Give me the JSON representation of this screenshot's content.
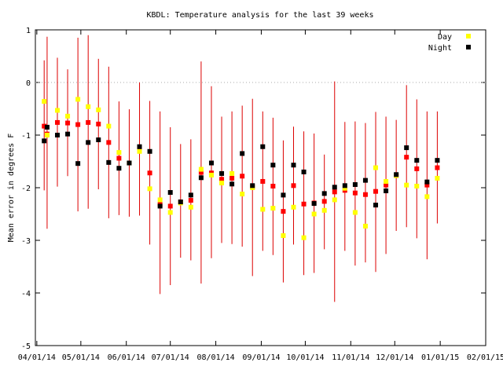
{
  "chart_data": {
    "type": "scatter",
    "title": "KBDL: Temperature analysis for the last 39 weeks",
    "xlabel": "",
    "ylabel": "Mean error in degrees F",
    "x_axis": {
      "type": "date",
      "ticks": [
        "04/01/14",
        "05/01/14",
        "06/01/14",
        "07/01/14",
        "08/01/14",
        "09/01/14",
        "10/01/14",
        "11/01/14",
        "12/01/14",
        "01/01/15",
        "02/01/15"
      ]
    },
    "y_axis": {
      "ylim": [
        -5,
        1
      ],
      "ticks": [
        "1",
        "0",
        "-1",
        "-2",
        "-3",
        "-4",
        "-5"
      ]
    },
    "reference_line": {
      "y": 0,
      "style": "dotted",
      "color": "#aaaaaa"
    },
    "legend": {
      "placement": "top-right",
      "entries": [
        {
          "name": "Day",
          "color": "#ffff00"
        },
        {
          "name": "Night",
          "color": "#000000"
        }
      ]
    },
    "colors": {
      "error_bar": "#dd0000",
      "mean": "#ff0000",
      "day": "#ffff00",
      "night": "#000000"
    },
    "weeks": [
      {
        "date": "2014-04-06",
        "mean": -0.83,
        "low": -2.05,
        "high": 0.42,
        "day": -0.36,
        "night": -1.11
      },
      {
        "date": "2014-04-08",
        "mean": -0.98,
        "low": -2.78,
        "high": 0.87,
        "day": -1.0,
        "night": -0.85
      },
      {
        "date": "2014-04-15",
        "mean": -0.76,
        "low": -1.98,
        "high": 0.47,
        "day": -0.53,
        "night": -1.0
      },
      {
        "date": "2014-04-22",
        "mean": -0.77,
        "low": -1.78,
        "high": 0.25,
        "day": -0.64,
        "night": -0.98
      },
      {
        "date": "2014-04-29",
        "mean": -0.8,
        "low": -2.45,
        "high": 0.85,
        "day": -0.32,
        "night": -1.54
      },
      {
        "date": "2014-05-06",
        "mean": -0.76,
        "low": -2.4,
        "high": 0.9,
        "day": -0.46,
        "night": -1.14
      },
      {
        "date": "2014-05-13",
        "mean": -0.79,
        "low": -2.03,
        "high": 0.45,
        "day": -0.52,
        "night": -1.09
      },
      {
        "date": "2014-05-20",
        "mean": -1.14,
        "low": -2.58,
        "high": 0.3,
        "day": -0.83,
        "night": -1.52
      },
      {
        "date": "2014-05-27",
        "mean": -1.44,
        "low": -2.52,
        "high": -0.36,
        "day": -1.33,
        "night": -1.63
      },
      {
        "date": "2014-06-03",
        "mean": -1.53,
        "low": -2.55,
        "high": -0.51,
        "day": -1.53,
        "night": -1.53
      },
      {
        "date": "2014-06-10",
        "mean": -1.25,
        "low": -2.53,
        "high": 0.0,
        "day": -1.31,
        "night": -1.22
      },
      {
        "date": "2014-06-17",
        "mean": -1.72,
        "low": -3.08,
        "high": -0.35,
        "day": -2.02,
        "night": -1.31
      },
      {
        "date": "2014-06-24",
        "mean": -2.32,
        "low": -4.02,
        "high": -0.55,
        "day": -2.23,
        "night": -2.35
      },
      {
        "date": "2014-07-01",
        "mean": -2.35,
        "low": -3.85,
        "high": -0.85,
        "day": -2.47,
        "night": -2.09
      },
      {
        "date": "2014-07-08",
        "mean": -2.27,
        "low": -3.33,
        "high": -1.17,
        "day": -2.29,
        "night": -2.27
      },
      {
        "date": "2014-07-15",
        "mean": -2.24,
        "low": -3.38,
        "high": -1.08,
        "day": -2.37,
        "night": -2.14
      },
      {
        "date": "2014-07-22",
        "mean": -1.71,
        "low": -3.82,
        "high": 0.4,
        "day": -1.65,
        "night": -1.81
      },
      {
        "date": "2014-07-29",
        "mean": -1.72,
        "low": -3.34,
        "high": -0.07,
        "day": -1.76,
        "night": -1.53
      },
      {
        "date": "2014-08-05",
        "mean": -1.84,
        "low": -3.05,
        "high": -0.65,
        "day": -1.91,
        "night": -1.73
      },
      {
        "date": "2014-08-12",
        "mean": -1.82,
        "low": -3.07,
        "high": -0.55,
        "day": -1.73,
        "night": -1.93
      },
      {
        "date": "2014-08-19",
        "mean": -1.78,
        "low": -3.12,
        "high": -0.44,
        "day": -2.12,
        "night": -1.35
      },
      {
        "date": "2014-08-26",
        "mean": -1.98,
        "low": -3.68,
        "high": -0.31,
        "day": -2.0,
        "night": -1.96
      },
      {
        "date": "2014-09-02",
        "mean": -1.88,
        "low": -3.2,
        "high": -0.55,
        "day": -2.41,
        "night": -1.22
      },
      {
        "date": "2014-09-09",
        "mean": -1.97,
        "low": -3.28,
        "high": -0.67,
        "day": -2.39,
        "night": -1.57
      },
      {
        "date": "2014-09-16",
        "mean": -2.45,
        "low": -3.8,
        "high": -1.1,
        "day": -2.91,
        "night": -2.14
      },
      {
        "date": "2014-09-23",
        "mean": -1.96,
        "low": -3.08,
        "high": -0.84,
        "day": -2.37,
        "night": -1.57
      },
      {
        "date": "2014-09-30",
        "mean": -2.31,
        "low": -3.66,
        "high": -0.93,
        "day": -2.95,
        "night": -1.7
      },
      {
        "date": "2014-10-07",
        "mean": -2.29,
        "low": -3.62,
        "high": -0.97,
        "day": -2.5,
        "night": -2.3
      },
      {
        "date": "2014-10-14",
        "mean": -2.26,
        "low": -3.17,
        "high": -1.37,
        "day": -2.43,
        "night": -2.11
      },
      {
        "date": "2014-10-21",
        "mean": -2.08,
        "low": -4.17,
        "high": 0.02,
        "day": -2.23,
        "night": -1.99
      },
      {
        "date": "2014-10-28",
        "mean": -2.05,
        "low": -3.2,
        "high": -0.75,
        "day": -2.01,
        "night": -1.96
      },
      {
        "date": "2014-11-04",
        "mean": -2.1,
        "low": -3.48,
        "high": -0.74,
        "day": -2.47,
        "night": -1.94
      },
      {
        "date": "2014-11-11",
        "mean": -2.13,
        "low": -3.42,
        "high": -0.77,
        "day": -2.73,
        "night": -1.86
      },
      {
        "date": "2014-11-18",
        "mean": -2.07,
        "low": -3.6,
        "high": -0.56,
        "day": -1.62,
        "night": -2.33
      },
      {
        "date": "2014-11-25",
        "mean": -1.95,
        "low": -3.26,
        "high": -0.65,
        "day": -1.88,
        "night": -2.06
      },
      {
        "date": "2014-12-02",
        "mean": -1.77,
        "low": -2.82,
        "high": -0.71,
        "day": -1.77,
        "night": -1.75
      },
      {
        "date": "2014-12-09",
        "mean": -1.42,
        "low": -2.75,
        "high": -0.05,
        "day": -1.95,
        "night": -1.24
      },
      {
        "date": "2014-12-16",
        "mean": -1.64,
        "low": -2.96,
        "high": -0.32,
        "day": -1.97,
        "night": -1.48
      },
      {
        "date": "2014-12-23",
        "mean": -1.95,
        "low": -3.36,
        "high": -0.55,
        "day": -2.17,
        "night": -1.89
      },
      {
        "date": "2014-12-30",
        "mean": -1.62,
        "low": -2.68,
        "high": -0.55,
        "day": -1.82,
        "night": -1.48
      }
    ]
  }
}
